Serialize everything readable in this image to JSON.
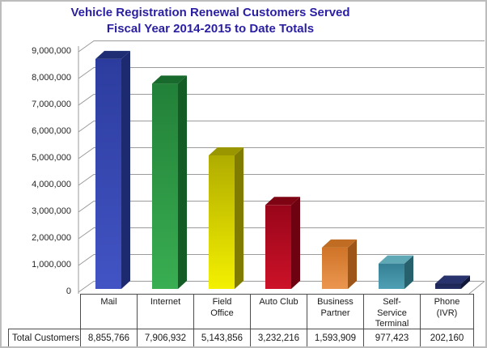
{
  "title": {
    "line1": "Vehicle Registration Renewal Customers Served",
    "line2": "Fiscal Year 2014-2015 to Date Totals",
    "color": "#2a1fa2"
  },
  "chart_data": {
    "type": "bar",
    "effect": "3d",
    "title": "Vehicle Registration Renewal Customers Served Fiscal Year 2014-2015 to Date Totals",
    "categories": [
      "Mail",
      "Internet",
      "Field Office",
      "Auto Club",
      "Business Partner",
      "Self-Service Terminal",
      "Phone (IVR)"
    ],
    "category_lines": [
      [
        "Mail"
      ],
      [
        "Internet"
      ],
      [
        "Field",
        "Office"
      ],
      [
        "Auto Club"
      ],
      [
        "Business",
        "Partner"
      ],
      [
        "Self-",
        "Service",
        "Terminal"
      ],
      [
        "Phone",
        "(IVR)"
      ]
    ],
    "series": [
      {
        "name": "Total Customers",
        "values": [
          8855766,
          7906932,
          5143856,
          3232216,
          1593909,
          977423,
          202160
        ]
      }
    ],
    "value_labels": [
      "8,855,766",
      "7,906,932",
      "5,143,856",
      "3,232,216",
      "1,593,909",
      "977,423",
      "202,160"
    ],
    "ylim": [
      0,
      9000000
    ],
    "ytick_step": 1000000,
    "ytick_labels": [
      "0",
      "1,000,000",
      "2,000,000",
      "3,000,000",
      "4,000,000",
      "5,000,000",
      "6,000,000",
      "7,000,000",
      "8,000,000",
      "9,000,000"
    ],
    "grid": true,
    "legend_position": "none",
    "gridline_color": "#9b9b9b",
    "bar_colors": [
      {
        "front_top": "#2c3c9e",
        "front_bottom": "#4254c4",
        "side": "#1e2a70",
        "top": "#1f2d74"
      },
      {
        "front_top": "#228038",
        "front_bottom": "#39ae52",
        "side": "#145c26",
        "top": "#186a2c"
      },
      {
        "front_top": "#b0ac00",
        "front_bottom": "#f4f000",
        "side": "#807c00",
        "top": "#9a9600"
      },
      {
        "front_top": "#98051a",
        "front_bottom": "#cc1228",
        "side": "#6e0210",
        "top": "#7e0414"
      },
      {
        "front_top": "#cf7428",
        "front_bottom": "#eb9650",
        "side": "#9e5618",
        "top": "#c06c22"
      },
      {
        "front_top": "#357f94",
        "front_bottom": "#4fa0b4",
        "side": "#27616e",
        "top": "#5fa8b6"
      },
      {
        "front_top": "#1c2552",
        "front_bottom": "#232e64",
        "side": "#111838",
        "top": "#28336e"
      }
    ]
  },
  "table": {
    "row_header": "Total Customers"
  }
}
